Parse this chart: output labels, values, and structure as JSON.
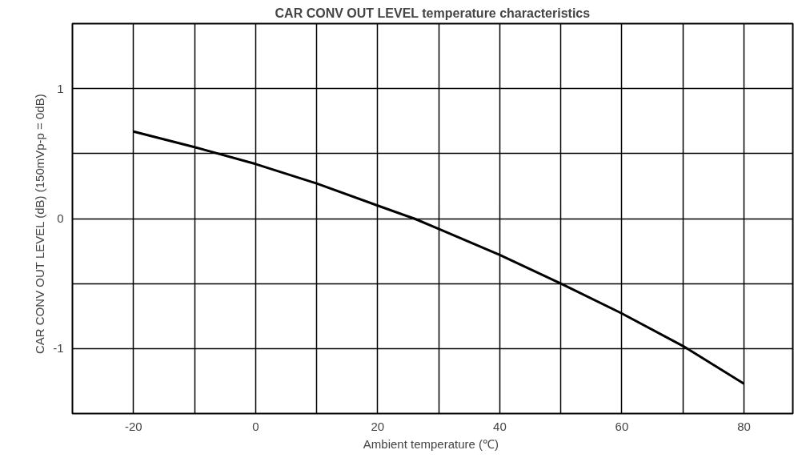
{
  "chart_data": {
    "type": "line",
    "title": "CAR CONV OUT LEVEL temperature characteristics",
    "xlabel": "Ambient temperature  (℃)",
    "ylabel": "CAR CONV OUT LEVEL   (dB)  (150mVp-p = 0dB)",
    "x": [
      -20,
      -10,
      0,
      10,
      20,
      26,
      30,
      40,
      50,
      60,
      70,
      80
    ],
    "series": [
      {
        "color": "#000000",
        "values": [
          0.67,
          0.55,
          0.42,
          0.27,
          0.1,
          0.0,
          -0.08,
          -0.28,
          -0.5,
          -0.73,
          -0.98,
          -1.27
        ]
      }
    ],
    "xlim": [
      -30,
      88
    ],
    "ylim": [
      -1.5,
      1.5
    ],
    "xticks": [
      {
        "value": -30,
        "label": null
      },
      -20,
      {
        "value": -10,
        "label": null
      },
      0,
      {
        "value": 10,
        "label": null
      },
      20,
      {
        "value": 30,
        "label": null
      },
      40,
      {
        "value": 50,
        "label": null
      },
      60,
      {
        "value": 70,
        "label": null
      },
      80
    ],
    "yticks": [
      {
        "value": -1.5,
        "label": null
      },
      -1,
      {
        "value": -0.5,
        "label": null
      },
      0,
      {
        "value": 0.5,
        "label": null
      },
      1,
      {
        "value": 1.5,
        "label": null
      }
    ],
    "grid": true,
    "line_style": "solid"
  }
}
